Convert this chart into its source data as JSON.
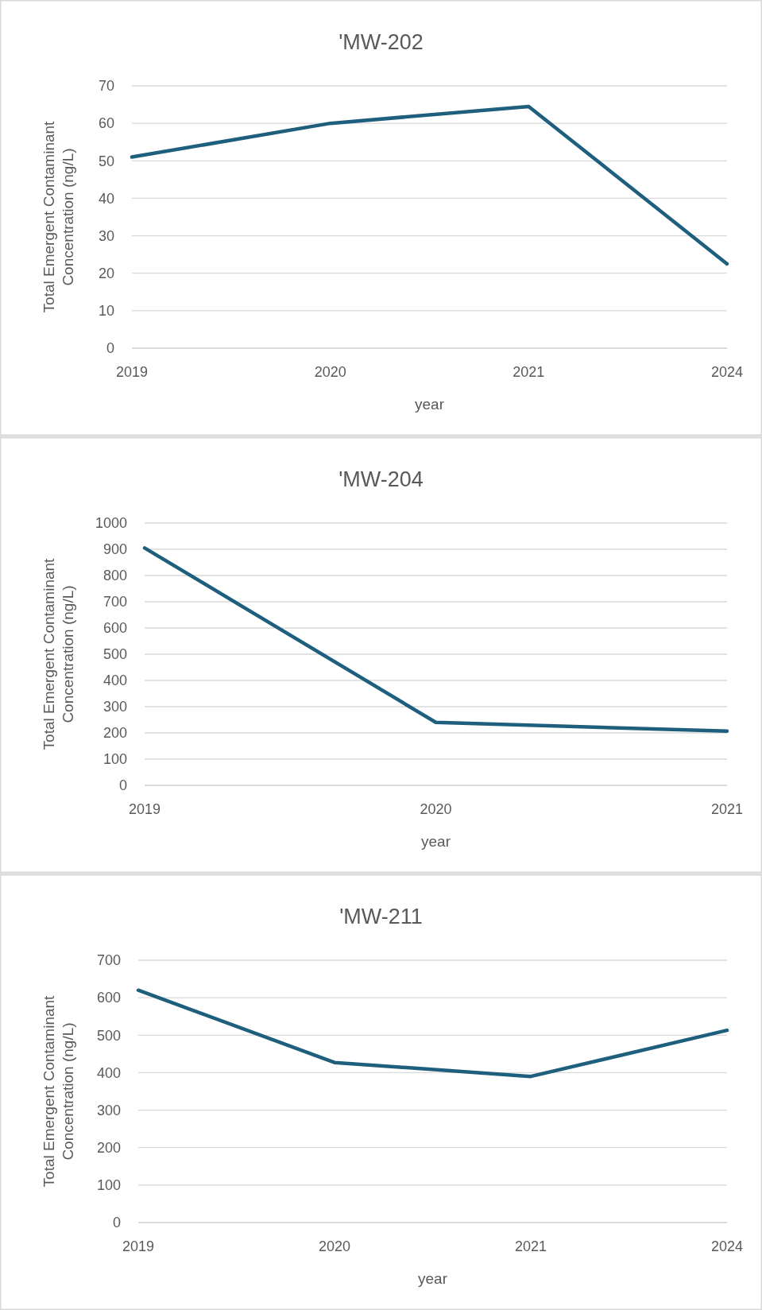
{
  "chart_data": [
    {
      "type": "line",
      "title": "'MW-202",
      "xlabel": "year",
      "ylabel": "Total Emergent Contaminant Concentration (ng/L)",
      "categories": [
        "2019",
        "2020",
        "2021",
        "2024"
      ],
      "series": [
        {
          "color": "#1f5f7e",
          "values": [
            51,
            60,
            64.5,
            22.5
          ]
        }
      ],
      "ylim": [
        0,
        70
      ],
      "yticks": [
        0,
        10,
        20,
        30,
        40,
        50,
        60,
        70
      ],
      "grid": "y",
      "marker": "none",
      "line_style": "solid"
    },
    {
      "type": "line",
      "title": "'MW-204",
      "xlabel": "year",
      "ylabel": "Total Emergent Contaminant Concentration (ng/L)",
      "categories": [
        "2019",
        "2020",
        "2021"
      ],
      "series": [
        {
          "color": "#1f5f7e",
          "values": [
            905,
            240,
            207
          ]
        }
      ],
      "ylim": [
        0,
        1000
      ],
      "yticks": [
        0,
        100,
        200,
        300,
        400,
        500,
        600,
        700,
        800,
        900,
        1000
      ],
      "grid": "y",
      "marker": "none",
      "line_style": "solid"
    },
    {
      "type": "line",
      "title": "'MW-211",
      "xlabel": "year",
      "ylabel": "Total Emergent Contaminant Concentration (ng/L)",
      "categories": [
        "2019",
        "2020",
        "2021",
        "2024"
      ],
      "series": [
        {
          "color": "#1f5f7e",
          "values": [
            620,
            427,
            390,
            513
          ]
        }
      ],
      "ylim": [
        0,
        700
      ],
      "yticks": [
        0,
        100,
        200,
        300,
        400,
        500,
        600,
        700
      ],
      "grid": "y",
      "marker": "none",
      "line_style": "solid"
    }
  ]
}
